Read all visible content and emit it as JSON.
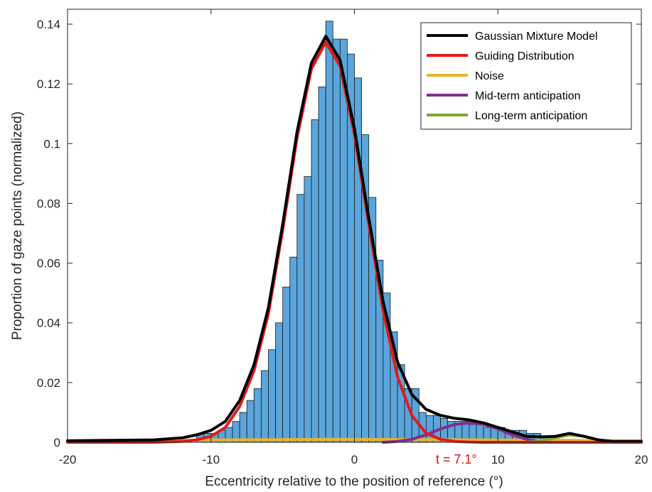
{
  "chart_data": {
    "type": "bar",
    "xlabel": "Eccentricity relative to the position of reference (°)",
    "ylabel": "Proportion of gaze points (normalized)",
    "xlim": [
      -20,
      20
    ],
    "ylim": [
      0,
      0.145
    ],
    "xticks": [
      -20,
      -10,
      0,
      10,
      20
    ],
    "yticks": [
      0,
      0.02,
      0.04,
      0.06,
      0.08,
      0.1,
      0.12,
      0.14
    ],
    "xtick_labels": [
      "-20",
      "-10",
      "0",
      "10",
      "20"
    ],
    "ytick_labels": [
      "0",
      "0.02",
      "0.04",
      "0.06",
      "0.08",
      "0.1",
      "0.12",
      "0.14"
    ],
    "grid": false,
    "legend_position": "top-right",
    "histogram": {
      "color": "#5aa5db",
      "bin_edges": [
        -11,
        -10.5,
        -10,
        -9.5,
        -9,
        -8.5,
        -8,
        -7.5,
        -7,
        -6.5,
        -6,
        -5.5,
        -5,
        -4.5,
        -4,
        -3.5,
        -3,
        -2.5,
        -2,
        -1.5,
        -1,
        -0.5,
        0,
        0.5,
        1,
        1.5,
        2,
        2.5,
        3,
        3.5,
        4,
        4.5,
        5,
        5.5,
        6,
        6.5,
        7,
        7.5,
        8,
        8.5,
        9,
        9.5,
        10,
        10.5,
        11,
        11.5,
        12,
        12.5,
        13,
        13.5,
        14,
        14.5,
        15,
        15.5,
        16,
        16.5
      ],
      "values": [
        0.003,
        0.003,
        0.003,
        0.004,
        0.005,
        0.007,
        0.01,
        0.014,
        0.018,
        0.024,
        0.031,
        0.04,
        0.052,
        0.062,
        0.083,
        0.089,
        0.108,
        0.119,
        0.141,
        0.135,
        0.135,
        0.13,
        0.122,
        0.103,
        0.082,
        0.061,
        0.05,
        0.037,
        0.026,
        0.018,
        0.018,
        0.01,
        0.009,
        0.009,
        0.008,
        0.007,
        0.007,
        0.007,
        0.006,
        0.006,
        0.005,
        0.005,
        0.005,
        0.004,
        0.004,
        0.004,
        0.003,
        0.003,
        0.002,
        0.002,
        0.001,
        0.001,
        0.001,
        0.0,
        0.0
      ]
    },
    "series": [
      {
        "name": "Gaussian Mixture Model",
        "color": "#000000",
        "x": [
          -20,
          -14,
          -12,
          -11,
          -10,
          -9,
          -8,
          -7,
          -6,
          -5,
          -4,
          -3,
          -2,
          -1,
          0,
          1,
          2,
          3,
          4,
          5,
          6,
          7,
          8,
          9,
          10,
          11,
          12,
          13,
          14,
          15,
          16,
          17,
          18,
          20
        ],
        "y": [
          0.0005,
          0.0008,
          0.0015,
          0.0025,
          0.004,
          0.007,
          0.014,
          0.026,
          0.045,
          0.073,
          0.104,
          0.127,
          0.136,
          0.128,
          0.105,
          0.075,
          0.047,
          0.027,
          0.016,
          0.011,
          0.009,
          0.008,
          0.0075,
          0.0065,
          0.005,
          0.0035,
          0.002,
          0.0018,
          0.002,
          0.003,
          0.002,
          0.0008,
          0.0003,
          0.0003
        ]
      },
      {
        "name": "Guiding Distribution",
        "color": "#e31a1a",
        "x": [
          -20,
          -14,
          -12,
          -11,
          -10,
          -9,
          -8,
          -7,
          -6,
          -5,
          -4,
          -3,
          -2,
          -1,
          0,
          1,
          2,
          3,
          4,
          5,
          6,
          7,
          8,
          9,
          10,
          20
        ],
        "y": [
          0.0,
          0.0,
          0.0003,
          0.0008,
          0.002,
          0.005,
          0.012,
          0.024,
          0.043,
          0.071,
          0.102,
          0.125,
          0.134,
          0.126,
          0.103,
          0.073,
          0.044,
          0.022,
          0.009,
          0.003,
          0.001,
          0.0003,
          0.0001,
          0.0,
          0.0,
          0.0
        ]
      },
      {
        "name": "Noise",
        "color": "#e8b32d",
        "x": [
          -20,
          -10,
          0,
          10,
          20
        ],
        "y": [
          0.0005,
          0.0008,
          0.001,
          0.0008,
          0.0005
        ]
      },
      {
        "name": "Mid-term anticipation",
        "color": "#7e2f8e",
        "x": [
          2,
          3,
          4,
          5,
          6,
          7,
          8,
          9,
          10,
          11,
          12,
          13
        ],
        "y": [
          0.0,
          0.0003,
          0.001,
          0.0025,
          0.0045,
          0.006,
          0.0065,
          0.006,
          0.0045,
          0.0025,
          0.001,
          0.0002
        ]
      },
      {
        "name": "Long-term anticipation",
        "color": "#77ac30",
        "x": [
          12,
          13,
          14,
          15,
          16,
          17,
          18
        ],
        "y": [
          0.0,
          0.0005,
          0.0015,
          0.0025,
          0.002,
          0.0008,
          0.0
        ]
      }
    ],
    "annotations": [
      {
        "text": "t = 7.1°",
        "x": 7.1,
        "y": 0,
        "color": "#d21414"
      }
    ]
  }
}
